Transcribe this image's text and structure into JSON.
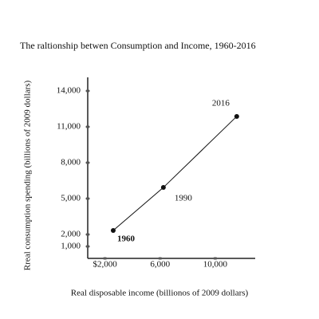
{
  "chart_data": {
    "type": "line",
    "title": "The raltionship betwen Consumption and Income, 1960-2016",
    "x_label": "Real disposable income (billionos of 2009 dollars)",
    "y_label": "Rreal consumption spending (billions of 2009 dollars)",
    "x": [
      2600,
      6240,
      11560
    ],
    "values": [
      2330,
      5930,
      11870
    ],
    "point_labels": [
      "1960",
      "1990",
      "2016"
    ],
    "color": "#111111",
    "xlim": [
      750,
      12900
    ],
    "ylim": [
      0,
      15000
    ],
    "xticks": [
      {
        "value": 2000,
        "label": "$2,000"
      },
      {
        "value": 6000,
        "label": "6,000"
      },
      {
        "value": 10000,
        "label": "10,000"
      }
    ],
    "yticks": [
      {
        "value": 1000,
        "label": "1,000"
      },
      {
        "value": 2000,
        "label": "2,000"
      },
      {
        "value": 5000,
        "label": "5,000"
      },
      {
        "value": 8000,
        "label": "8,000"
      },
      {
        "value": 11000,
        "label": "11,000"
      },
      {
        "value": 14000,
        "label": "14,000"
      }
    ]
  }
}
